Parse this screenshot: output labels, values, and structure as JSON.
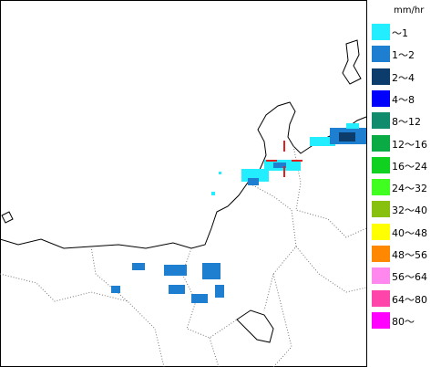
{
  "legend": {
    "unit": "mm/hr",
    "items": [
      {
        "label": "～1",
        "color": "#22eeff"
      },
      {
        "label": "1～2",
        "color": "#1e7fd0"
      },
      {
        "label": "2～4",
        "color": "#0c3c6c"
      },
      {
        "label": "4～8",
        "color": "#0000ff"
      },
      {
        "label": "8～12",
        "color": "#108c6c"
      },
      {
        "label": "12～16",
        "color": "#0aaa44"
      },
      {
        "label": "16～24",
        "color": "#10d020"
      },
      {
        "label": "24～32",
        "color": "#40ff20"
      },
      {
        "label": "32～40",
        "color": "#88c010"
      },
      {
        "label": "40～48",
        "color": "#ffff00"
      },
      {
        "label": "48～56",
        "color": "#ff8800"
      },
      {
        "label": "56～64",
        "color": "#ff88ee"
      },
      {
        "label": "64～80",
        "color": "#ff44aa"
      },
      {
        "label": "80～",
        "color": "#ff00ff"
      }
    ]
  }
}
